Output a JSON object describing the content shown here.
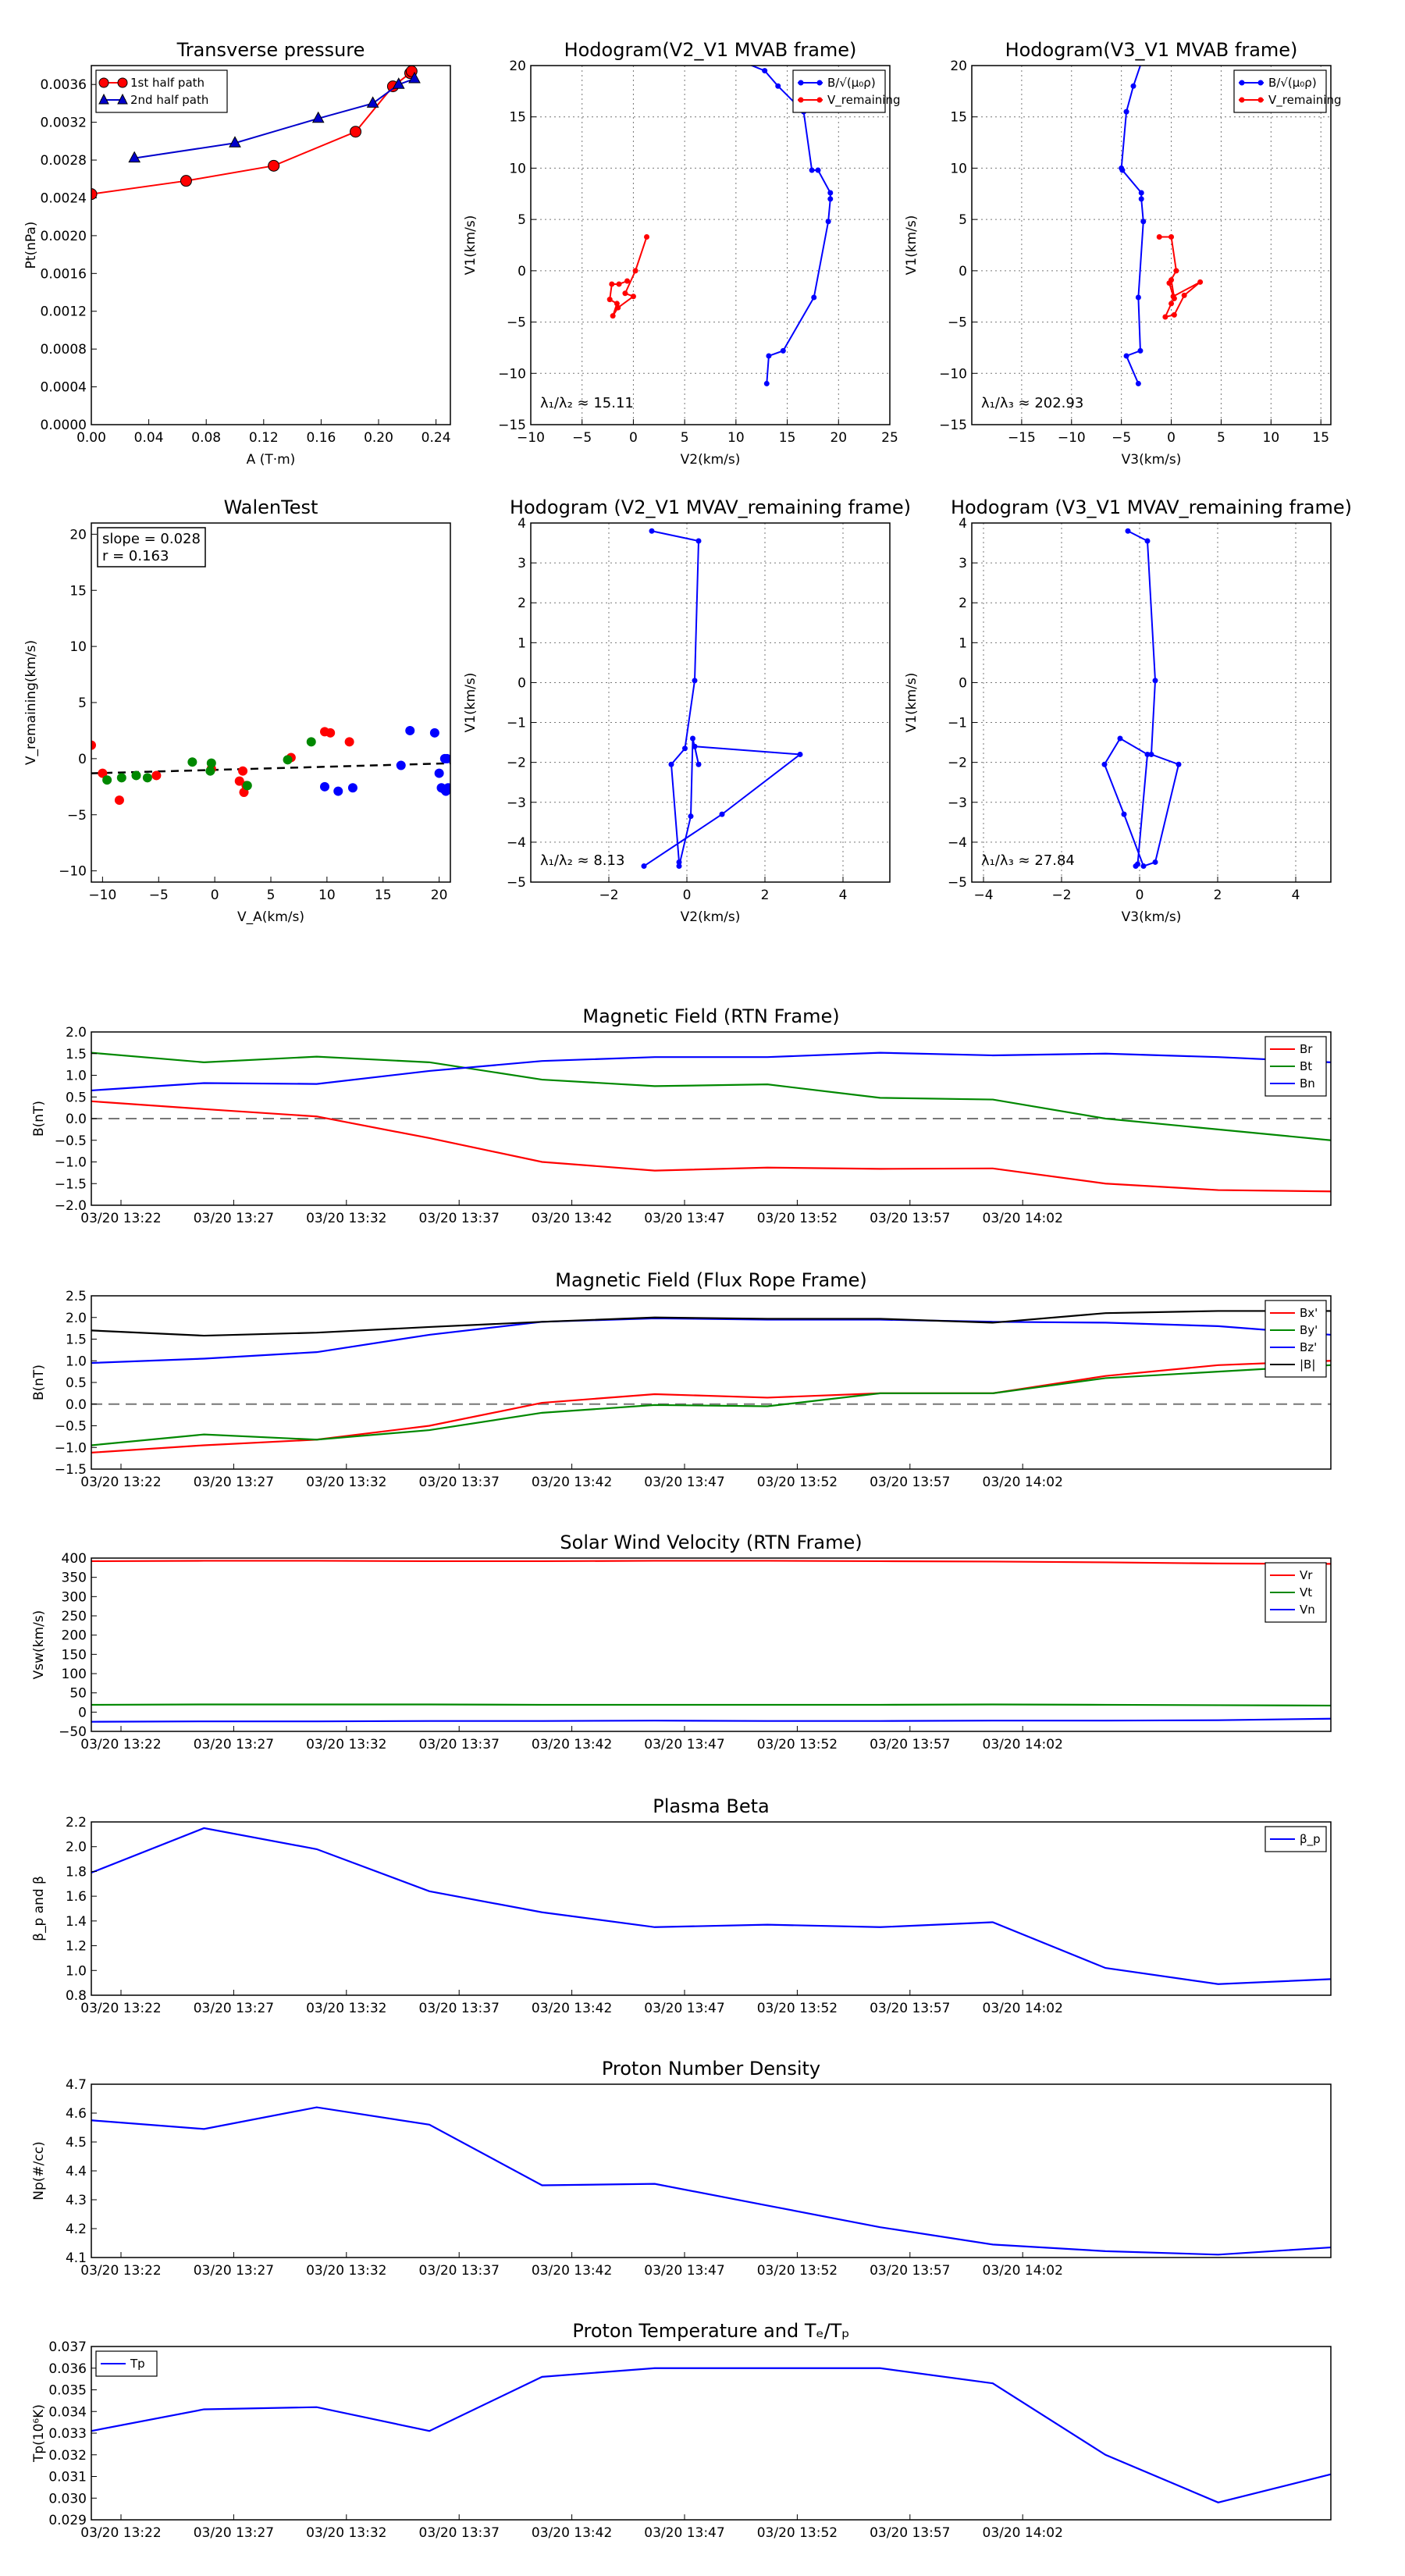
{
  "time_ticks": [
    "03/20 13:22",
    "03/20 13:27",
    "03/20 13:32",
    "03/20 13:37",
    "03/20 13:42",
    "03/20 13:47",
    "03/20 13:52",
    "03/20 13:57",
    "03/20 14:02"
  ],
  "chart_data": [
    {
      "id": "pt",
      "type": "line",
      "title": "Transverse pressure",
      "xlabel": "A (T·m)",
      "ylabel": "Pt(nPa)",
      "xlim": [
        0,
        0.25
      ],
      "ylim": [
        0,
        0.0038
      ],
      "xticks": [
        0,
        0.04,
        0.08,
        0.12,
        0.16,
        0.2,
        0.24
      ],
      "xtick_labels": [
        "0.00",
        "0.04",
        "0.08",
        "0.12",
        "0.16",
        "0.20",
        "0.24"
      ],
      "yticks": [
        0,
        0.0004,
        0.0008,
        0.0012,
        0.0016,
        0.002,
        0.0024,
        0.0028,
        0.0032,
        0.0036
      ],
      "ytick_labels": [
        "0.0000",
        "0.0004",
        "0.0008",
        "0.0012",
        "0.0016",
        "0.0020",
        "0.0024",
        "0.0028",
        "0.0032",
        "0.0036"
      ],
      "legend": "top-left",
      "series": [
        {
          "name": "1st half path",
          "color": "#ff0000",
          "marker": "circle",
          "x": [
            0.0,
            0.066,
            0.127,
            0.184,
            0.21,
            0.222,
            0.223
          ],
          "y": [
            0.00244,
            0.00258,
            0.00274,
            0.0031,
            0.00358,
            0.00372,
            0.00374
          ]
        },
        {
          "name": "2nd half path",
          "color": "#0000cc",
          "marker": "triangle",
          "x": [
            0.03,
            0.1,
            0.158,
            0.196,
            0.214,
            0.225
          ],
          "y": [
            0.00282,
            0.00298,
            0.00324,
            0.0034,
            0.0036,
            0.00366
          ]
        }
      ]
    },
    {
      "id": "h1",
      "type": "line",
      "title": "Hodogram(V2_V1 MVAB frame)",
      "xlabel": "V2(km/s)",
      "ylabel": "V1(km/s)",
      "xlim": [
        -10,
        25
      ],
      "ylim": [
        -15,
        20
      ],
      "xticks": [
        -10,
        -5,
        0,
        5,
        10,
        15,
        20,
        25
      ],
      "xtick_labels": [
        "−10",
        "−5",
        "0",
        "5",
        "10",
        "15",
        "20",
        "25"
      ],
      "yticks": [
        -15,
        -10,
        -5,
        0,
        5,
        10,
        15,
        20
      ],
      "ytick_labels": [
        "−15",
        "−10",
        "−5",
        "0",
        "5",
        "10",
        "15",
        "20"
      ],
      "grid": true,
      "legend": "top-right",
      "annotation": "λ₁/λ₂ ≈ 15.11",
      "series": [
        {
          "name": "B/√(μ₀ρ)",
          "color": "#0000ff",
          "x": [
            13,
            13.2,
            14.6,
            17.6,
            19,
            19.2,
            19.2,
            18,
            17.4,
            16.6,
            14.1,
            12.8,
            10.8
          ],
          "y": [
            -11,
            -8.3,
            -7.8,
            -2.6,
            4.8,
            7,
            7.6,
            9.8,
            9.8,
            15.5,
            18,
            19.5,
            20.3
          ]
        },
        {
          "name": "V_remaining",
          "color": "#ff0000",
          "x": [
            1.3,
            0.2,
            -0.8,
            0,
            -1.5,
            -2,
            -1.6,
            -2.3,
            -2.1,
            -1.4,
            -0.6
          ],
          "y": [
            3.3,
            0,
            -2.2,
            -2.5,
            -3.6,
            -4.4,
            -3.2,
            -2.8,
            -1.3,
            -1.3,
            -1
          ]
        }
      ]
    },
    {
      "id": "h2",
      "type": "line",
      "title": "Hodogram(V3_V1 MVAB frame)",
      "xlabel": "V3(km/s)",
      "ylabel": "V1(km/s)",
      "xlim": [
        -20,
        16
      ],
      "ylim": [
        -15,
        20
      ],
      "xticks": [
        -15,
        -10,
        -5,
        0,
        5,
        10,
        15
      ],
      "xtick_labels": [
        "−15",
        "−10",
        "−5",
        "0",
        "5",
        "10",
        "15"
      ],
      "yticks": [
        -15,
        -10,
        -5,
        0,
        5,
        10,
        15,
        20
      ],
      "ytick_labels": [
        "−15",
        "−10",
        "−5",
        "0",
        "5",
        "10",
        "15",
        "20"
      ],
      "grid": true,
      "legend": "top-right",
      "annotation": "λ₁/λ₃ ≈ 202.93",
      "series": [
        {
          "name": "B/√(μ₀ρ)",
          "color": "#0000ff",
          "x": [
            -3.3,
            -4.5,
            -3.1,
            -3.3,
            -2.8,
            -3.0,
            -3.0,
            -4.9,
            -5,
            -4.5,
            -3.8,
            -3.0
          ],
          "y": [
            -11,
            -8.3,
            -7.8,
            -2.6,
            4.8,
            7,
            7.6,
            9.8,
            10,
            15.5,
            18,
            20.3
          ]
        },
        {
          "name": "V_remaining",
          "color": "#ff0000",
          "x": [
            -1.2,
            0,
            0.5,
            -0.2,
            0.2,
            2.9,
            1.3,
            0.3,
            -0.6,
            0,
            0.3,
            0
          ],
          "y": [
            3.3,
            3.3,
            0,
            -1.2,
            -2.5,
            -1.1,
            -2.4,
            -4.3,
            -4.5,
            -3.2,
            -2.7,
            -0.9
          ]
        }
      ]
    },
    {
      "id": "walen",
      "type": "scatter",
      "title": "WalenTest",
      "xlabel": "V_A(km/s)",
      "ylabel": "V_remaining(km/s)",
      "xlim": [
        -11,
        21
      ],
      "ylim": [
        -11,
        21
      ],
      "xticks": [
        -10,
        -5,
        0,
        5,
        10,
        15,
        20
      ],
      "xtick_labels": [
        "−10",
        "−5",
        "0",
        "5",
        "10",
        "15",
        "20"
      ],
      "yticks": [
        -10,
        -5,
        0,
        5,
        10,
        15,
        20
      ],
      "ytick_labels": [
        "−10",
        "−5",
        "0",
        "5",
        "10",
        "15",
        "20"
      ],
      "annotation_lines": [
        "slope = 0.028",
        "r = 0.163"
      ],
      "fit": {
        "slope": 0.028,
        "intercept": -1.0
      },
      "series": [
        {
          "name": "red",
          "color": "#ff0000",
          "x": [
            -11,
            -10,
            -8.5,
            -5.2,
            -0.3,
            2.2,
            2.8,
            2.6,
            2.5,
            6.8,
            9.8,
            10.3,
            12
          ],
          "y": [
            1.2,
            -1.3,
            -3.7,
            -1.5,
            -0.9,
            -2,
            -2.4,
            -3,
            -1.1,
            0.1,
            2.4,
            2.3,
            1.5
          ]
        },
        {
          "name": "green",
          "color": "#008800",
          "x": [
            -9.6,
            -8.3,
            -7,
            -6,
            -2,
            -0.4,
            -0.3,
            2.9,
            6.5,
            8.6
          ],
          "y": [
            -1.9,
            -1.7,
            -1.5,
            -1.7,
            -0.3,
            -1.1,
            -0.4,
            -2.4,
            -0.1,
            1.5
          ]
        },
        {
          "name": "blue",
          "color": "#0000ff",
          "x": [
            9.8,
            11,
            12.3,
            16.6,
            17.4,
            19.6,
            20,
            20.2,
            20.4,
            20.6,
            20.8,
            20.5,
            20.7
          ],
          "y": [
            -2.5,
            -2.9,
            -2.6,
            -0.6,
            2.5,
            2.3,
            -1.3,
            -2.6,
            -2.7,
            -2.9,
            -2.6,
            0,
            0
          ]
        }
      ]
    },
    {
      "id": "h3",
      "type": "line",
      "title": "Hodogram (V2_V1 MVAV_remaining frame)",
      "xlabel": "V2(km/s)",
      "ylabel": "V1(km/s)",
      "xlim": [
        -4,
        5.2
      ],
      "ylim": [
        -5,
        4
      ],
      "xticks": [
        -2,
        0,
        2,
        4
      ],
      "xtick_labels": [
        "−2",
        "0",
        "2",
        "4"
      ],
      "yticks": [
        -5,
        -4,
        -3,
        -2,
        -1,
        0,
        1,
        2,
        3,
        4
      ],
      "ytick_labels": [
        "−5",
        "−4",
        "−3",
        "−2",
        "−1",
        "0",
        "1",
        "2",
        "3",
        "4"
      ],
      "grid": true,
      "annotation": "λ₁/λ₂ ≈ 8.13",
      "series": [
        {
          "name": "path",
          "color": "#0000ff",
          "x": [
            -0.9,
            0.3,
            0.2,
            -0.05,
            -0.4,
            -0.2,
            -0.2,
            0.1,
            0.15,
            0.3,
            0.2,
            2.9,
            0.9,
            -1.1
          ],
          "y": [
            3.8,
            3.55,
            0.05,
            -1.65,
            -2.05,
            -4.5,
            -4.6,
            -3.35,
            -1.4,
            -2.05,
            -1.6,
            -1.8,
            -3.3,
            -4.6
          ]
        }
      ]
    },
    {
      "id": "h4",
      "type": "line",
      "title": "Hodogram (V3_V1 MVAV_remaining frame)",
      "xlabel": "V3(km/s)",
      "ylabel": "V1(km/s)",
      "xlim": [
        -4.3,
        4.9
      ],
      "ylim": [
        -5,
        4
      ],
      "xticks": [
        -4,
        -2,
        0,
        2,
        4
      ],
      "xtick_labels": [
        "−4",
        "−2",
        "0",
        "2",
        "4"
      ],
      "yticks": [
        -5,
        -4,
        -3,
        -2,
        -1,
        0,
        1,
        2,
        3,
        4
      ],
      "ytick_labels": [
        "−5",
        "−4",
        "−3",
        "−2",
        "−1",
        "0",
        "1",
        "2",
        "3",
        "4"
      ],
      "grid": true,
      "annotation": "λ₁/λ₃ ≈ 27.84",
      "series": [
        {
          "name": "path",
          "color": "#0000ff",
          "x": [
            -0.3,
            0.2,
            0.4,
            0.3,
            1.0,
            0.4,
            0.1,
            -0.4,
            -0.9,
            -0.5,
            0.2,
            -0.05,
            -0.1
          ],
          "y": [
            3.8,
            3.55,
            0.05,
            -1.8,
            -2.05,
            -4.5,
            -4.6,
            -3.3,
            -2.05,
            -1.4,
            -1.8,
            -4.55,
            -4.6
          ]
        }
      ]
    },
    {
      "id": "brtn",
      "type": "line",
      "title": "Magnetic Field (RTN Frame)",
      "ylabel": "B(nT)",
      "ylim": [
        -2.0,
        2.0
      ],
      "yticks": [
        -2,
        -1.5,
        -1,
        -0.5,
        0,
        0.5,
        1,
        1.5,
        2
      ],
      "ytick_labels": [
        "−2.0",
        "−1.5",
        "−1.0",
        "−0.5",
        "0.0",
        "0.5",
        "1.0",
        "1.5",
        "2.0"
      ],
      "zero_line": true,
      "legend": "top-right",
      "series": [
        {
          "name": "Br",
          "color": "#ff0000",
          "y": [
            0.4,
            0.22,
            0.05,
            -0.45,
            -1.0,
            -1.2,
            -1.13,
            -1.16,
            -1.15,
            -1.5,
            -1.65,
            -1.68
          ]
        },
        {
          "name": "Bt",
          "color": "#008800",
          "y": [
            1.52,
            1.3,
            1.43,
            1.3,
            0.9,
            0.75,
            0.79,
            0.48,
            0.44,
            0.0,
            -0.25,
            -0.5
          ]
        },
        {
          "name": "Bn",
          "color": "#0000ff",
          "y": [
            0.65,
            0.82,
            0.8,
            1.1,
            1.33,
            1.42,
            1.42,
            1.52,
            1.46,
            1.5,
            1.42,
            1.3
          ]
        }
      ]
    },
    {
      "id": "bfr",
      "type": "line",
      "title": "Magnetic Field (Flux Rope Frame)",
      "ylabel": "B(nT)",
      "ylim": [
        -1.5,
        2.5
      ],
      "yticks": [
        -1.5,
        -1,
        -0.5,
        0,
        0.5,
        1,
        1.5,
        2,
        2.5
      ],
      "ytick_labels": [
        "−1.5",
        "−1.0",
        "−0.5",
        "0.0",
        "0.5",
        "1.0",
        "1.5",
        "2.0",
        "2.5"
      ],
      "zero_line": true,
      "legend": "top-right",
      "series": [
        {
          "name": "Bx'",
          "color": "#ff0000",
          "y": [
            -1.12,
            -0.95,
            -0.82,
            -0.5,
            0.03,
            0.23,
            0.15,
            0.25,
            0.25,
            0.65,
            0.9,
            1.0
          ]
        },
        {
          "name": "By'",
          "color": "#008800",
          "y": [
            -0.95,
            -0.7,
            -0.82,
            -0.6,
            -0.2,
            -0.02,
            -0.05,
            0.25,
            0.25,
            0.6,
            0.75,
            0.9
          ]
        },
        {
          "name": "Bz'",
          "color": "#0000ff",
          "y": [
            0.95,
            1.05,
            1.2,
            1.6,
            1.9,
            1.98,
            1.95,
            1.95,
            1.9,
            1.88,
            1.8,
            1.6
          ]
        },
        {
          "name": "|B|",
          "color": "#000000",
          "y": [
            1.7,
            1.58,
            1.65,
            1.78,
            1.9,
            2.0,
            1.97,
            1.97,
            1.88,
            2.1,
            2.15,
            2.15
          ]
        }
      ]
    },
    {
      "id": "vsw",
      "type": "line",
      "title": "Solar Wind Velocity (RTN Frame)",
      "ylabel": "Vsw(km/s)",
      "ylim": [
        -50,
        400
      ],
      "yticks": [
        -50,
        0,
        50,
        100,
        150,
        200,
        250,
        300,
        350,
        400
      ],
      "ytick_labels": [
        "−50",
        "0",
        "50",
        "100",
        "150",
        "200",
        "250",
        "300",
        "350",
        "400"
      ],
      "legend": "top-right",
      "series": [
        {
          "name": "Vr",
          "color": "#ff0000",
          "y": [
            392,
            393,
            393,
            392,
            392,
            393,
            393,
            392,
            391,
            389,
            386,
            385
          ]
        },
        {
          "name": "Vt",
          "color": "#008800",
          "y": [
            19,
            20,
            20,
            20,
            19,
            19,
            19,
            19,
            20,
            19,
            18,
            17
          ]
        },
        {
          "name": "Vn",
          "color": "#0000ff",
          "y": [
            -25,
            -24,
            -24,
            -23,
            -23,
            -22,
            -23,
            -23,
            -22,
            -22,
            -21,
            -17
          ]
        }
      ]
    },
    {
      "id": "beta",
      "type": "line",
      "title": "Plasma Beta",
      "ylabel": "β_p and β",
      "ylim": [
        0.8,
        2.2
      ],
      "yticks": [
        0.8,
        1.0,
        1.2,
        1.4,
        1.6,
        1.8,
        2.0,
        2.2
      ],
      "ytick_labels": [
        "0.8",
        "1.0",
        "1.2",
        "1.4",
        "1.6",
        "1.8",
        "2.0",
        "2.2"
      ],
      "legend": "top-right",
      "series": [
        {
          "name": "β_p",
          "color": "#0000ff",
          "y": [
            1.79,
            2.15,
            1.98,
            1.64,
            1.47,
            1.35,
            1.37,
            1.35,
            1.39,
            1.02,
            0.89,
            0.93
          ]
        }
      ]
    },
    {
      "id": "np",
      "type": "line",
      "title": "Proton Number Density",
      "ylabel": "Np(#/cc)",
      "ylim": [
        4.1,
        4.7
      ],
      "yticks": [
        4.1,
        4.2,
        4.3,
        4.4,
        4.5,
        4.6,
        4.7
      ],
      "ytick_labels": [
        "4.1",
        "4.2",
        "4.3",
        "4.4",
        "4.5",
        "4.6",
        "4.7"
      ],
      "series": [
        {
          "name": "Np",
          "color": "#0000ff",
          "y": [
            4.575,
            4.545,
            4.62,
            4.56,
            4.35,
            4.355,
            4.28,
            4.205,
            4.145,
            4.122,
            4.11,
            4.135
          ]
        }
      ]
    },
    {
      "id": "tp",
      "type": "line",
      "title": "Proton Temperature and Tₑ/Tₚ",
      "ylabel": "Tp(10⁶K)",
      "ylim": [
        0.029,
        0.037
      ],
      "yticks": [
        0.029,
        0.03,
        0.031,
        0.032,
        0.033,
        0.034,
        0.035,
        0.036,
        0.037
      ],
      "ytick_labels": [
        "0.029",
        "0.030",
        "0.031",
        "0.032",
        "0.033",
        "0.034",
        "0.035",
        "0.036",
        "0.037"
      ],
      "legend": "top-left",
      "series": [
        {
          "name": "Tp",
          "color": "#0000ff",
          "y": [
            0.0331,
            0.0341,
            0.0342,
            0.0331,
            0.0356,
            0.036,
            0.036,
            0.036,
            0.0353,
            0.032,
            0.0298,
            0.0311
          ]
        }
      ]
    }
  ]
}
